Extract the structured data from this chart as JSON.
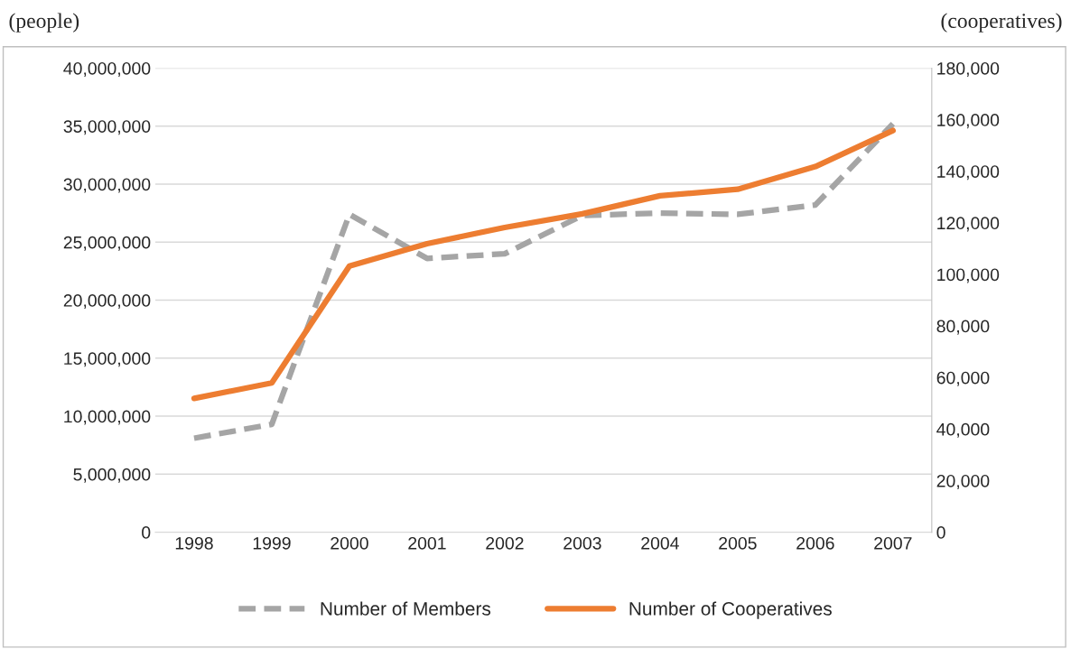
{
  "chart_data": {
    "type": "line",
    "ylabel": "(people)",
    "y2label": "(cooperatives)",
    "categories": [
      "1998",
      "1999",
      "2000",
      "2001",
      "2002",
      "2003",
      "2004",
      "2005",
      "2006",
      "2007"
    ],
    "series": [
      {
        "name": "Number of Members",
        "color": "#a5a5a5",
        "line_style": "dashed",
        "values": [
          8100000,
          9300000,
          27400000,
          23600000,
          24000000,
          27300000,
          27500000,
          27400000,
          28200000,
          35200000
        ]
      },
      {
        "name": "Number of Cooperatives",
        "color": "#ed7d31",
        "line_style": "solid",
        "axis": "y2",
        "values": [
          51900,
          57900,
          103200,
          111900,
          118200,
          123500,
          130500,
          133000,
          141800,
          155800
        ]
      }
    ],
    "ylim": [
      0,
      40000000
    ],
    "yticks": [
      0,
      {
        "value": 5000000,
        "label": "5,000,000"
      },
      {
        "value": 10000000,
        "label": "10,000,000"
      },
      {
        "value": 15000000,
        "label": "15,000,000"
      },
      {
        "value": 20000000,
        "label": "20,000,000"
      },
      {
        "value": 25000000,
        "label": "25,000,000"
      },
      {
        "value": 30000000,
        "label": "30,000,000"
      },
      {
        "value": 35000000,
        "label": "35,000,000"
      },
      {
        "value": 40000000,
        "label": "40,000,000"
      }
    ],
    "y2lim": [
      0,
      180000
    ],
    "y2ticks": [
      0,
      {
        "value": 20000,
        "label": "20,000"
      },
      {
        "value": 40000,
        "label": "40,000"
      },
      {
        "value": 60000,
        "label": "60,000"
      },
      {
        "value": 80000,
        "label": "80,000"
      },
      {
        "value": 100000,
        "label": "100,000"
      },
      {
        "value": 120000,
        "label": "120,000"
      },
      {
        "value": 140000,
        "label": "140,000"
      },
      {
        "value": 160000,
        "label": "160,000"
      },
      {
        "value": 180000,
        "label": "180,000"
      }
    ],
    "grid": "y",
    "legend": "bottom",
    "marker": "none"
  }
}
